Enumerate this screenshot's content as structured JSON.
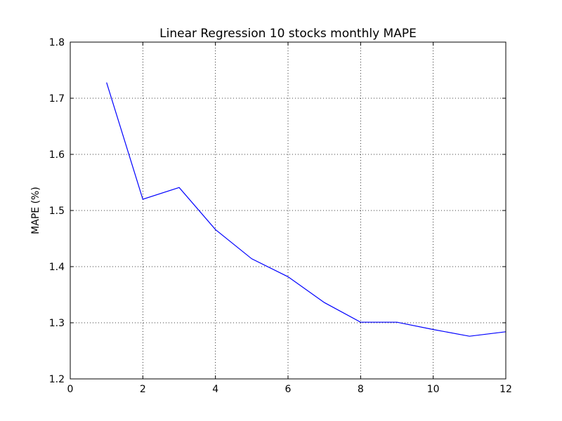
{
  "chart_data": {
    "type": "line",
    "title": "Linear Regression 10 stocks monthly MAPE",
    "xlabel": "",
    "ylabel": "MAPE (%)",
    "xlim": [
      0,
      12
    ],
    "ylim": [
      1.2,
      1.8
    ],
    "xticks": [
      0,
      2,
      4,
      6,
      8,
      10,
      12
    ],
    "yticks": [
      1.2,
      1.3,
      1.4,
      1.5,
      1.6,
      1.7,
      1.8
    ],
    "xtick_labels": [
      "0",
      "2",
      "4",
      "6",
      "8",
      "10",
      "12"
    ],
    "ytick_labels": [
      "1.2",
      "1.3",
      "1.4",
      "1.5",
      "1.6",
      "1.7",
      "1.8"
    ],
    "grid": true,
    "series": [
      {
        "color": "#0000ff",
        "x": [
          1,
          2,
          3,
          4,
          5,
          6,
          7,
          8,
          9,
          10,
          11,
          12
        ],
        "y": [
          1.728,
          1.52,
          1.541,
          1.466,
          1.414,
          1.382,
          1.336,
          1.301,
          1.301,
          1.288,
          1.276,
          1.284
        ]
      }
    ]
  }
}
